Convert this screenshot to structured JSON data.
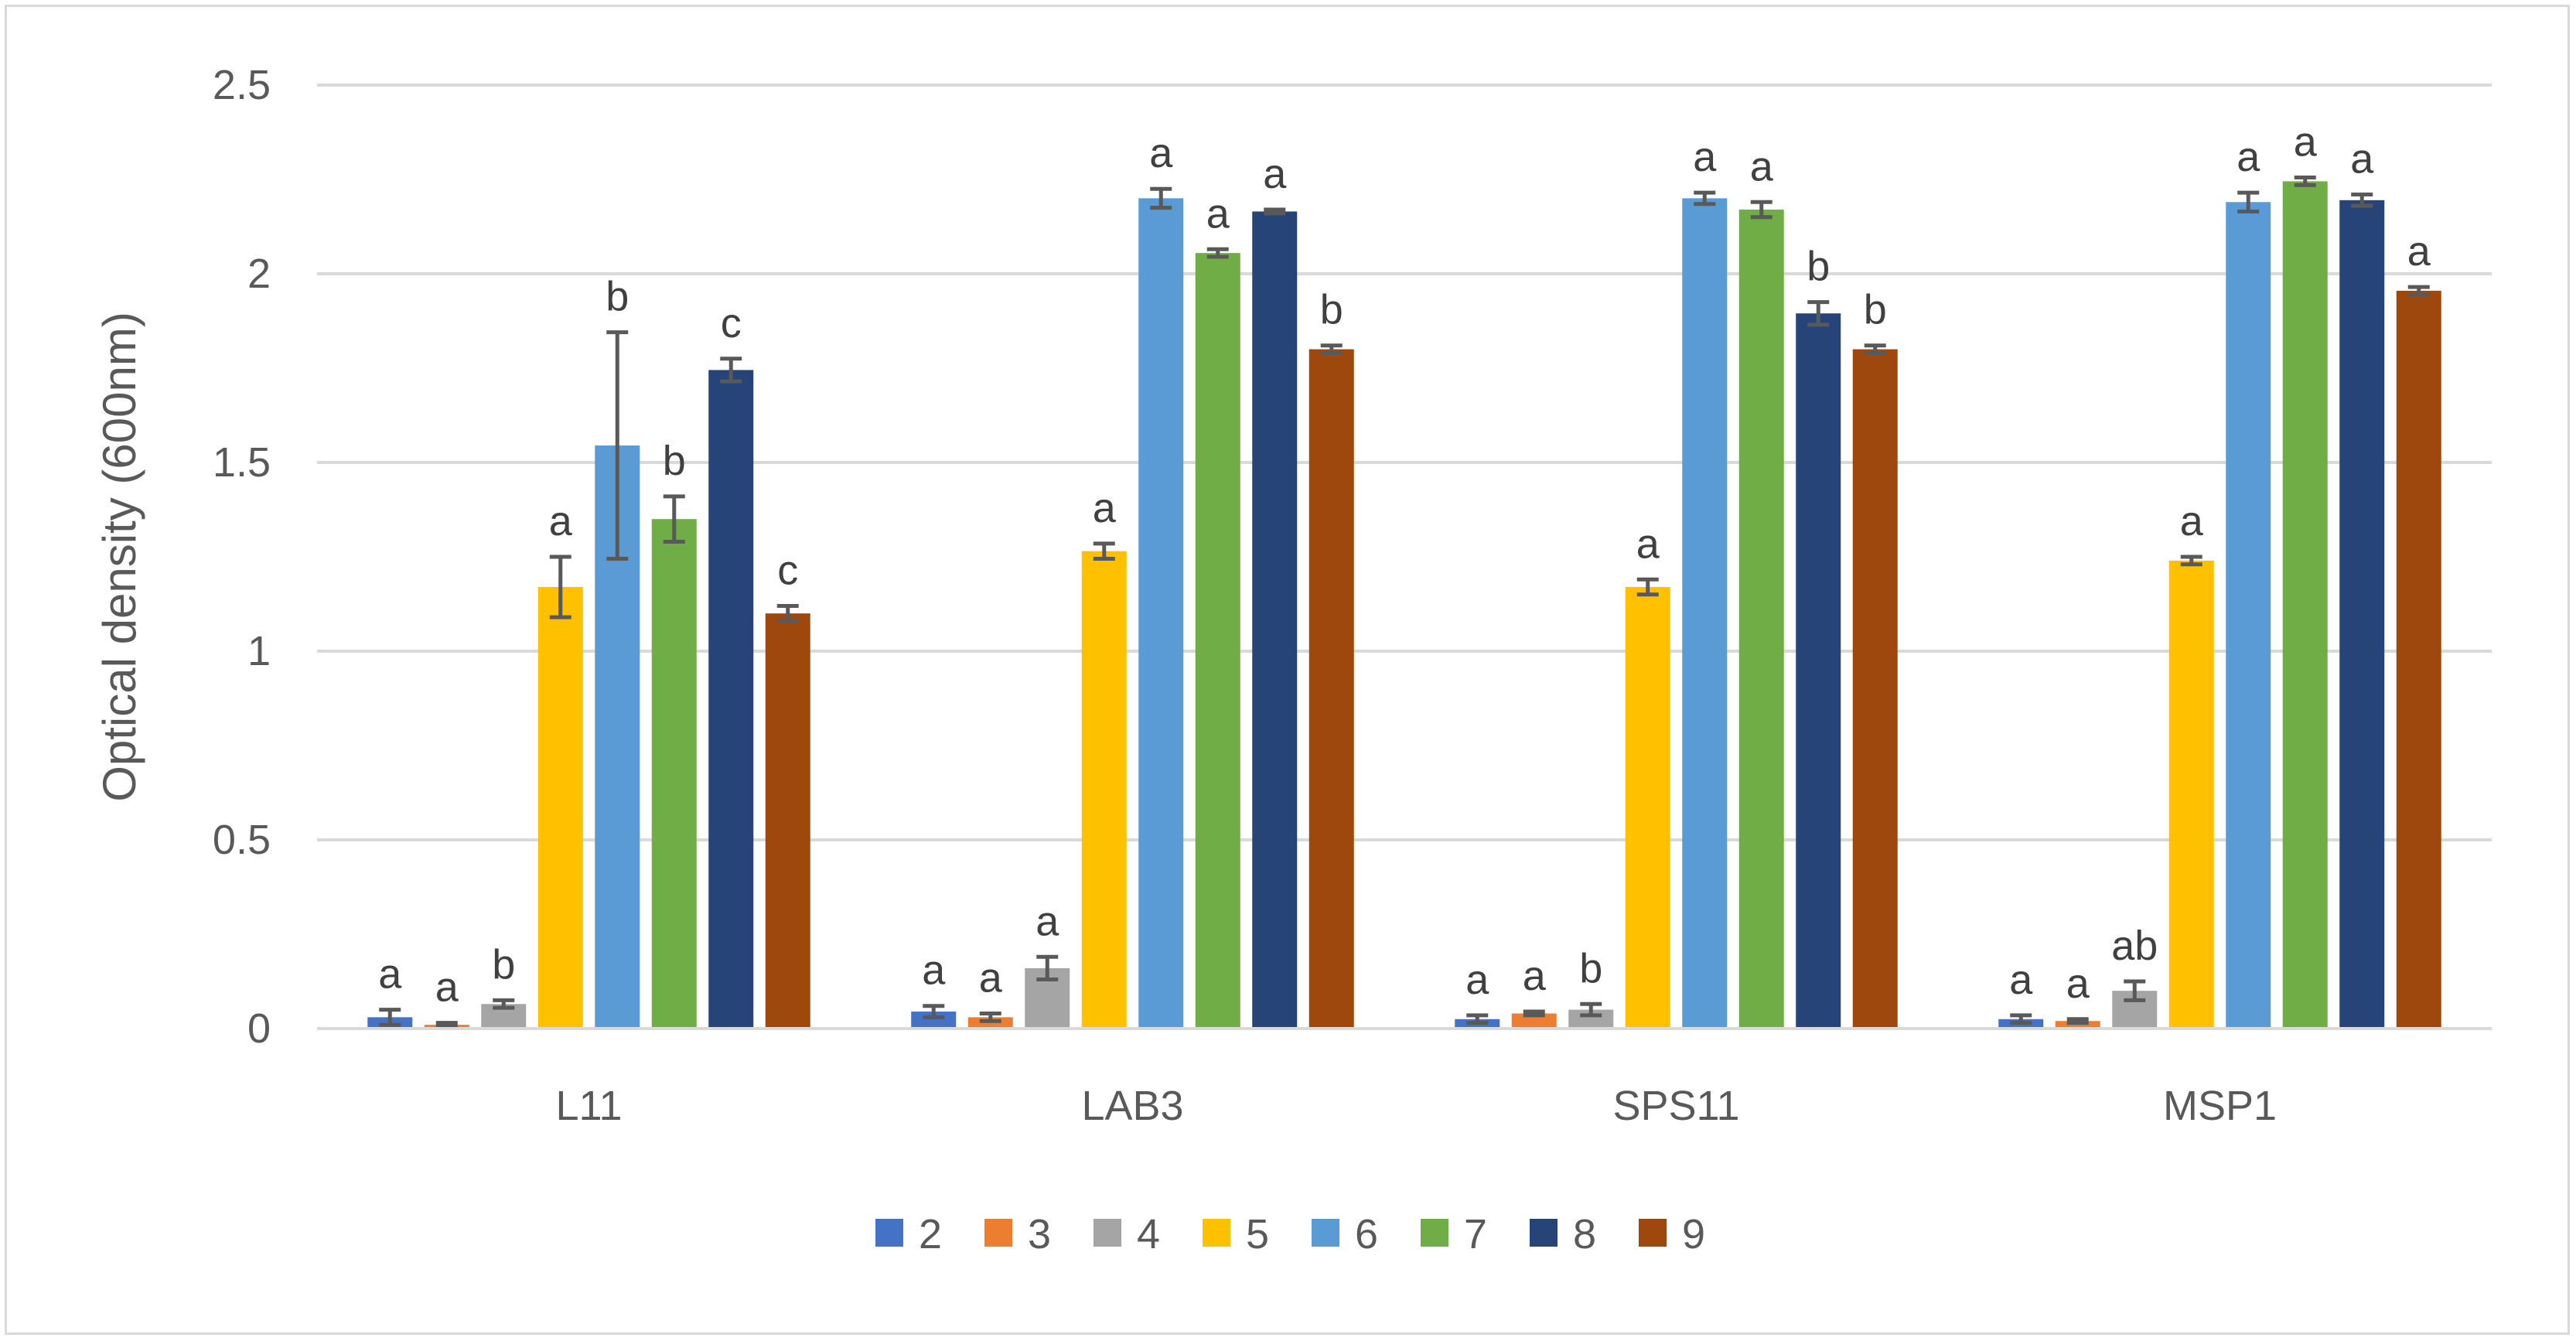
{
  "chart_data": {
    "type": "bar",
    "title": "",
    "xlabel": "",
    "ylabel": "Optical density (600nm)",
    "ylim": [
      0,
      2.5
    ],
    "yticks": [
      0,
      0.5,
      1,
      1.5,
      2,
      2.5
    ],
    "ytick_labels": [
      "0",
      "0.5",
      "1",
      "1.5",
      "2",
      "2.5"
    ],
    "grid": true,
    "legend_position": "bottom",
    "categories": [
      "L11",
      "LAB3",
      "SPS11",
      "MSP1"
    ],
    "series": [
      {
        "name": "2",
        "color": "#4472c4",
        "values": [
          0.03,
          0.045,
          0.025,
          0.025
        ],
        "errors": [
          0.02,
          0.015,
          0.01,
          0.01
        ],
        "letters": [
          "a",
          "a",
          "a",
          "a"
        ]
      },
      {
        "name": "3",
        "color": "#ed7d31",
        "values": [
          0.01,
          0.03,
          0.04,
          0.02
        ],
        "errors": [
          0.005,
          0.01,
          0.005,
          0.005
        ],
        "letters": [
          "a",
          "a",
          "a",
          "a"
        ]
      },
      {
        "name": "4",
        "color": "#a5a5a5",
        "values": [
          0.065,
          0.16,
          0.05,
          0.1
        ],
        "errors": [
          0.01,
          0.03,
          0.015,
          0.025
        ],
        "letters": [
          "b",
          "a",
          "b",
          "ab"
        ]
      },
      {
        "name": "5",
        "color": "#ffc000",
        "values": [
          1.17,
          1.265,
          1.17,
          1.24
        ],
        "errors": [
          0.08,
          0.02,
          0.02,
          0.01
        ],
        "letters": [
          "a",
          "a",
          "a",
          "a"
        ]
      },
      {
        "name": "6",
        "color": "#5b9bd5",
        "values": [
          1.545,
          2.2,
          2.2,
          2.19
        ],
        "errors": [
          0.3,
          0.025,
          0.015,
          0.025
        ],
        "letters": [
          "b",
          "a",
          "a",
          "a"
        ]
      },
      {
        "name": "7",
        "color": "#70ad47",
        "values": [
          1.35,
          2.055,
          2.17,
          2.245
        ],
        "errors": [
          0.06,
          0.01,
          0.02,
          0.01
        ],
        "letters": [
          "b",
          "a",
          "a",
          "a"
        ]
      },
      {
        "name": "8",
        "color": "#264478",
        "values": [
          1.745,
          2.165,
          1.895,
          2.195
        ],
        "errors": [
          0.03,
          0.005,
          0.03,
          0.015
        ],
        "letters": [
          "c",
          "a",
          "b",
          "a"
        ]
      },
      {
        "name": "9",
        "color": "#9e480e",
        "values": [
          1.1,
          1.8,
          1.8,
          1.955
        ],
        "errors": [
          0.02,
          0.01,
          0.01,
          0.01
        ],
        "letters": [
          "c",
          "b",
          "b",
          "a"
        ]
      }
    ],
    "error_bar_color": "#595959"
  }
}
